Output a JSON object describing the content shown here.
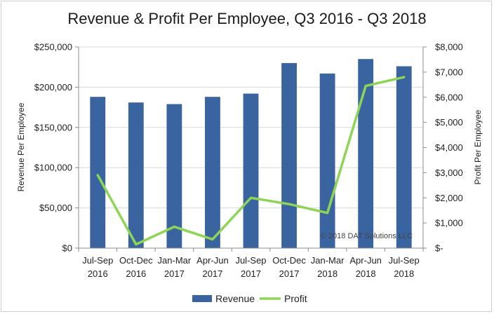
{
  "chart_data": {
    "type": "bar",
    "title": "Revenue & Profit Per Employee, Q3 2016 - Q3 2018",
    "categories": [
      [
        "Jul-Sep",
        "2016"
      ],
      [
        "Oct-Dec",
        "2016"
      ],
      [
        "Jan-Mar",
        "2017"
      ],
      [
        "Apr-Jun",
        "2017"
      ],
      [
        "Jul-Sep",
        "2017"
      ],
      [
        "Oct-Dec",
        "2017"
      ],
      [
        "Jan-Mar",
        "2018"
      ],
      [
        "Apr-Jun",
        "2018"
      ],
      [
        "Jul-Sep",
        "2018"
      ]
    ],
    "series": [
      {
        "name": "Revenue",
        "type": "bar",
        "axis": "left",
        "color": "#3a64a0",
        "values": [
          188000,
          181000,
          179000,
          188000,
          192000,
          230000,
          217000,
          235000,
          226000
        ]
      },
      {
        "name": "Profit",
        "type": "line",
        "axis": "right",
        "color": "#8ed456",
        "values": [
          2900,
          150,
          850,
          350,
          2000,
          1750,
          1400,
          6450,
          6800
        ]
      }
    ],
    "ylabel": "Revenue Per Employee",
    "y2label": "Profit Per Employee",
    "ylim": [
      0,
      250000
    ],
    "y2lim": [
      0,
      8000
    ],
    "yticks": [
      "$0",
      "$50,000",
      "$100,000",
      "$150,000",
      "$200,000",
      "$250,000"
    ],
    "y2ticks": [
      "$-",
      "$1,000",
      "$2,000",
      "$3,000",
      "$4,000",
      "$5,000",
      "$6,000",
      "$7,000",
      "$8,000"
    ],
    "grid": true,
    "legend_position": "bottom",
    "annotation": "© 2018 DAT Solutions LLC"
  }
}
